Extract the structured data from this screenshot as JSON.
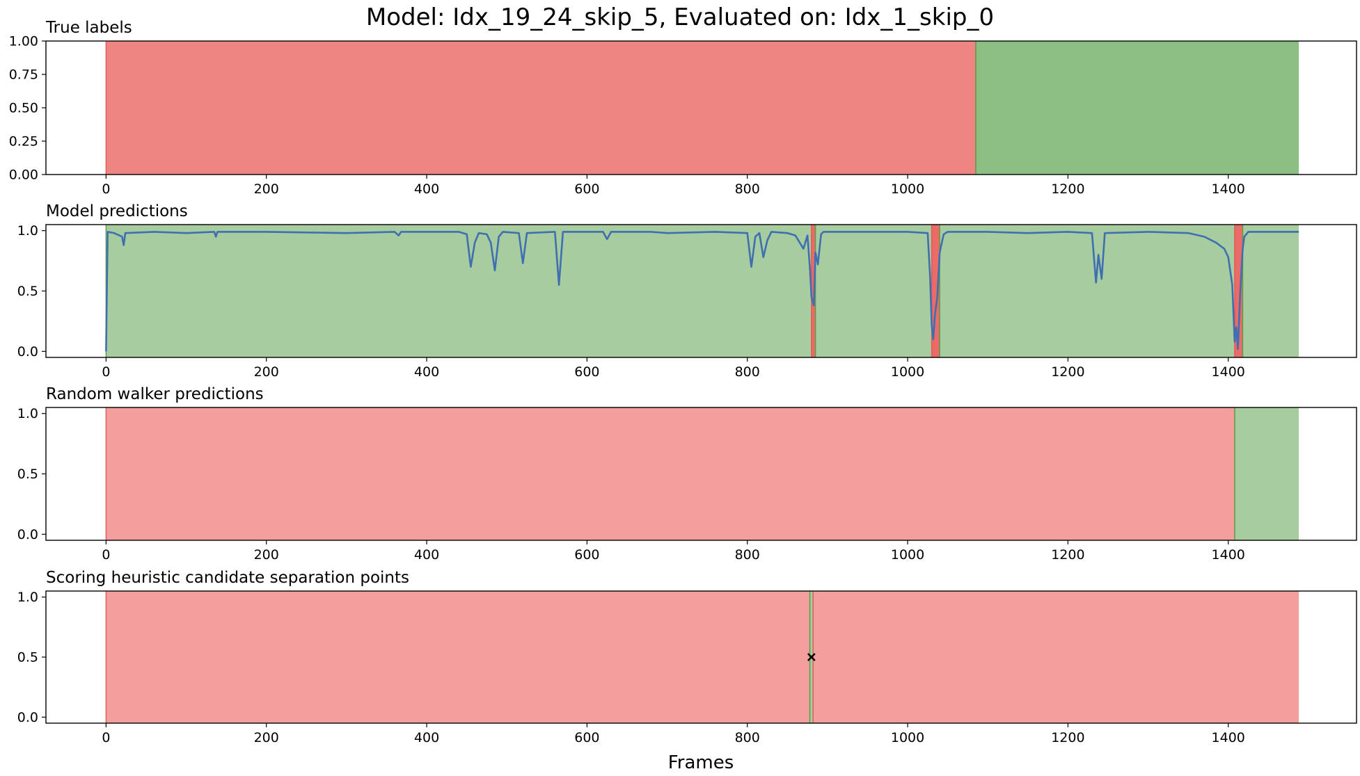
{
  "figure": {
    "title": "Model: Idx_19_24_skip_5, Evaluated on: Idx_1_skip_0",
    "xlabel": "Frames"
  },
  "colors": {
    "red": "#e8514f",
    "green": "#4f9a3f",
    "line": "#3f6fb0",
    "marker": "#000000"
  },
  "chart_data": [
    {
      "type": "area",
      "title": "True labels",
      "xlim": [
        -75,
        1560
      ],
      "ylim": [
        0,
        1
      ],
      "xticks": [
        0,
        200,
        400,
        600,
        800,
        1000,
        1200,
        1400
      ],
      "yticks": [
        0.0,
        0.25,
        0.5,
        0.75,
        1.0
      ],
      "ytick_labels": [
        "0.00",
        "0.25",
        "0.50",
        "0.75",
        "1.00"
      ],
      "spans": [
        {
          "start": 0,
          "end": 1085,
          "color": "red",
          "alpha": 0.7
        },
        {
          "start": 1085,
          "end": 1488,
          "color": "green",
          "alpha": 0.65
        }
      ],
      "series": []
    },
    {
      "type": "line",
      "title": "Model predictions",
      "xlim": [
        -75,
        1560
      ],
      "ylim": [
        -0.05,
        1.05
      ],
      "xticks": [
        0,
        200,
        400,
        600,
        800,
        1000,
        1200,
        1400
      ],
      "yticks": [
        0.0,
        0.5,
        1.0
      ],
      "ytick_labels": [
        "0.0",
        "0.5",
        "1.0"
      ],
      "spans": [
        {
          "start": 0,
          "end": 880,
          "color": "green",
          "alpha": 0.5
        },
        {
          "start": 880,
          "end": 885,
          "color": "red",
          "alpha": 0.85
        },
        {
          "start": 885,
          "end": 1030,
          "color": "green",
          "alpha": 0.5
        },
        {
          "start": 1030,
          "end": 1040,
          "color": "red",
          "alpha": 0.85
        },
        {
          "start": 1040,
          "end": 1408,
          "color": "green",
          "alpha": 0.5
        },
        {
          "start": 1408,
          "end": 1418,
          "color": "red",
          "alpha": 0.85
        },
        {
          "start": 1418,
          "end": 1488,
          "color": "green",
          "alpha": 0.5
        }
      ],
      "series": [
        {
          "points": [
            [
              0,
              0.0
            ],
            [
              2,
              0.99
            ],
            [
              10,
              0.98
            ],
            [
              20,
              0.95
            ],
            [
              22,
              0.88
            ],
            [
              24,
              0.98
            ],
            [
              60,
              0.99
            ],
            [
              100,
              0.98
            ],
            [
              135,
              0.99
            ],
            [
              137,
              0.95
            ],
            [
              139,
              0.99
            ],
            [
              200,
              0.99
            ],
            [
              300,
              0.98
            ],
            [
              360,
              0.99
            ],
            [
              365,
              0.96
            ],
            [
              368,
              0.99
            ],
            [
              440,
              0.99
            ],
            [
              450,
              0.97
            ],
            [
              455,
              0.7
            ],
            [
              460,
              0.9
            ],
            [
              465,
              0.98
            ],
            [
              475,
              0.97
            ],
            [
              480,
              0.9
            ],
            [
              485,
              0.67
            ],
            [
              490,
              0.95
            ],
            [
              495,
              0.99
            ],
            [
              515,
              0.98
            ],
            [
              520,
              0.73
            ],
            [
              525,
              0.98
            ],
            [
              560,
              0.99
            ],
            [
              565,
              0.55
            ],
            [
              570,
              0.99
            ],
            [
              620,
              0.99
            ],
            [
              625,
              0.93
            ],
            [
              630,
              0.99
            ],
            [
              680,
              0.99
            ],
            [
              700,
              0.98
            ],
            [
              760,
              0.99
            ],
            [
              800,
              0.98
            ],
            [
              805,
              0.7
            ],
            [
              810,
              0.95
            ],
            [
              815,
              0.98
            ],
            [
              820,
              0.78
            ],
            [
              825,
              0.92
            ],
            [
              830,
              0.99
            ],
            [
              850,
              0.98
            ],
            [
              860,
              0.96
            ],
            [
              870,
              0.85
            ],
            [
              875,
              0.96
            ],
            [
              878,
              0.7
            ],
            [
              880,
              0.45
            ],
            [
              883,
              0.38
            ],
            [
              885,
              0.82
            ],
            [
              888,
              0.72
            ],
            [
              892,
              0.97
            ],
            [
              895,
              0.99
            ],
            [
              950,
              0.99
            ],
            [
              1000,
              0.99
            ],
            [
              1025,
              0.98
            ],
            [
              1028,
              0.62
            ],
            [
              1030,
              0.22
            ],
            [
              1032,
              0.1
            ],
            [
              1034,
              0.3
            ],
            [
              1037,
              0.45
            ],
            [
              1040,
              0.82
            ],
            [
              1045,
              0.97
            ],
            [
              1050,
              0.99
            ],
            [
              1100,
              0.99
            ],
            [
              1150,
              0.98
            ],
            [
              1200,
              0.99
            ],
            [
              1230,
              0.98
            ],
            [
              1235,
              0.57
            ],
            [
              1238,
              0.8
            ],
            [
              1242,
              0.6
            ],
            [
              1246,
              0.98
            ],
            [
              1300,
              0.99
            ],
            [
              1350,
              0.98
            ],
            [
              1370,
              0.95
            ],
            [
              1385,
              0.9
            ],
            [
              1395,
              0.85
            ],
            [
              1400,
              0.78
            ],
            [
              1405,
              0.55
            ],
            [
              1408,
              0.08
            ],
            [
              1410,
              0.2
            ],
            [
              1412,
              0.02
            ],
            [
              1415,
              0.5
            ],
            [
              1418,
              0.85
            ],
            [
              1420,
              0.95
            ],
            [
              1425,
              0.99
            ],
            [
              1488,
              0.99
            ]
          ]
        }
      ]
    },
    {
      "type": "area",
      "title": "Random walker predictions",
      "xlim": [
        -75,
        1560
      ],
      "ylim": [
        -0.05,
        1.05
      ],
      "xticks": [
        0,
        200,
        400,
        600,
        800,
        1000,
        1200,
        1400
      ],
      "yticks": [
        0.0,
        0.5,
        1.0
      ],
      "ytick_labels": [
        "0.0",
        "0.5",
        "1.0"
      ],
      "spans": [
        {
          "start": 0,
          "end": 1408,
          "color": "red",
          "alpha": 0.55
        },
        {
          "start": 1408,
          "end": 1488,
          "color": "green",
          "alpha": 0.5
        }
      ],
      "series": []
    },
    {
      "type": "scatter",
      "title": "Scoring heuristic candidate separation points",
      "xlim": [
        -75,
        1560
      ],
      "ylim": [
        -0.05,
        1.05
      ],
      "xticks": [
        0,
        200,
        400,
        600,
        800,
        1000,
        1200,
        1400
      ],
      "yticks": [
        0.0,
        0.5,
        1.0
      ],
      "ytick_labels": [
        "0.0",
        "0.5",
        "1.0"
      ],
      "spans": [
        {
          "start": 0,
          "end": 878,
          "color": "red",
          "alpha": 0.55
        },
        {
          "start": 878,
          "end": 882,
          "color": "green",
          "alpha": 0.5
        },
        {
          "start": 882,
          "end": 1488,
          "color": "red",
          "alpha": 0.55
        }
      ],
      "series": [],
      "markers": [
        {
          "x": 880,
          "y": 0.5
        }
      ]
    }
  ]
}
